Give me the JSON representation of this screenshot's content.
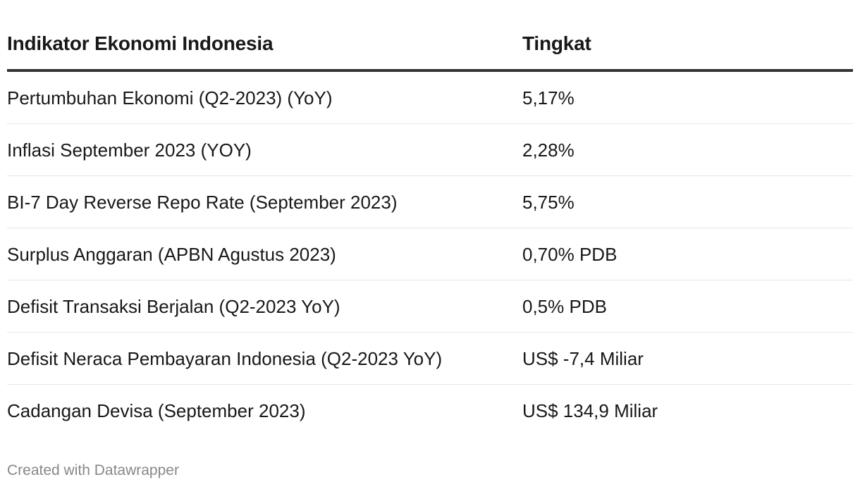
{
  "table": {
    "headers": [
      "Indikator Ekonomi Indonesia",
      "Tingkat"
    ],
    "rows": [
      [
        "Pertumbuhan Ekonomi (Q2-2023) (YoY)",
        "5,17%"
      ],
      [
        "Inflasi September 2023 (YOY)",
        "2,28%"
      ],
      [
        "BI-7 Day Reverse Repo Rate (September 2023)",
        "5,75%"
      ],
      [
        "Surplus Anggaran (APBN Agustus 2023)",
        "0,70% PDB"
      ],
      [
        "Defisit Transaksi Berjalan (Q2-2023 YoY)",
        "0,5% PDB"
      ],
      [
        "Defisit Neraca Pembayaran Indonesia (Q2-2023 YoY)",
        "US$ -7,4 Miliar"
      ],
      [
        "Cadangan Devisa (September 2023)",
        "US$ 134,9 Miliar"
      ]
    ]
  },
  "footer": {
    "prefix": "Created with ",
    "link": "Datawrapper"
  }
}
